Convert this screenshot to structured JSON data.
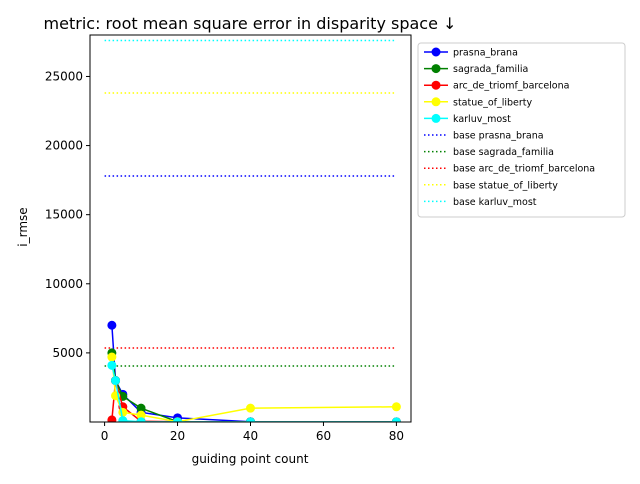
{
  "chart_data": {
    "type": "line",
    "title": "metric: root mean square error in disparity space ↓",
    "xlabel": "guiding point count",
    "ylabel": "i_rmse",
    "xlim": [
      -4.0,
      84.0
    ],
    "ylim": [
      0,
      28000
    ],
    "xticks": [
      0,
      20,
      40,
      60,
      80
    ],
    "yticks": [
      5000,
      10000,
      15000,
      20000,
      25000
    ],
    "legend_position": "outside-right-top",
    "grid": false,
    "series": [
      {
        "name": "prasna_brana",
        "color": "#0000ff",
        "style": "solid",
        "marker": "circle",
        "x": [
          2,
          3,
          5,
          10,
          20,
          40,
          80
        ],
        "y": [
          7000,
          3000,
          2000,
          700,
          300,
          20,
          10
        ]
      },
      {
        "name": "sagrada_familia",
        "color": "#008000",
        "style": "solid",
        "marker": "circle",
        "x": [
          2,
          3,
          5,
          10,
          20,
          40,
          80
        ],
        "y": [
          5000,
          3000,
          1850,
          1000,
          20,
          10,
          10
        ]
      },
      {
        "name": "arc_de_triomf_barcelona",
        "color": "#ff0000",
        "style": "solid",
        "marker": "circle",
        "x": [
          2,
          3,
          5,
          10,
          20,
          40,
          80
        ],
        "y": [
          150,
          3000,
          1100,
          50,
          20,
          10,
          10
        ]
      },
      {
        "name": "statue_of_liberty",
        "color": "#ffff00",
        "style": "solid",
        "marker": "circle",
        "x": [
          2,
          3,
          5,
          10,
          20,
          40,
          80
        ],
        "y": [
          4700,
          1900,
          700,
          500,
          20,
          1000,
          1100
        ]
      },
      {
        "name": "karluv_most",
        "color": "#00ffff",
        "style": "solid",
        "marker": "circle",
        "x": [
          2,
          3,
          5,
          10,
          20,
          40,
          80
        ],
        "y": [
          4100,
          3000,
          100,
          20,
          10,
          10,
          10
        ]
      },
      {
        "name": "base prasna_brana",
        "color": "#0000ff",
        "style": "dotted",
        "marker": "none",
        "x": [
          0,
          80
        ],
        "y": [
          17800,
          17800
        ]
      },
      {
        "name": "base sagrada_familia",
        "color": "#008000",
        "style": "dotted",
        "marker": "none",
        "x": [
          0,
          80
        ],
        "y": [
          4050,
          4050
        ]
      },
      {
        "name": "base arc_de_triomf_barcelona",
        "color": "#ff0000",
        "style": "dotted",
        "marker": "none",
        "x": [
          0,
          80
        ],
        "y": [
          5350,
          5350
        ]
      },
      {
        "name": "base statue_of_liberty",
        "color": "#ffff00",
        "style": "dotted",
        "marker": "none",
        "x": [
          0,
          80
        ],
        "y": [
          23800,
          23800
        ]
      },
      {
        "name": "base karluv_most",
        "color": "#00ffff",
        "style": "dotted",
        "marker": "none",
        "x": [
          0,
          80
        ],
        "y": [
          27600,
          27600
        ]
      }
    ]
  }
}
